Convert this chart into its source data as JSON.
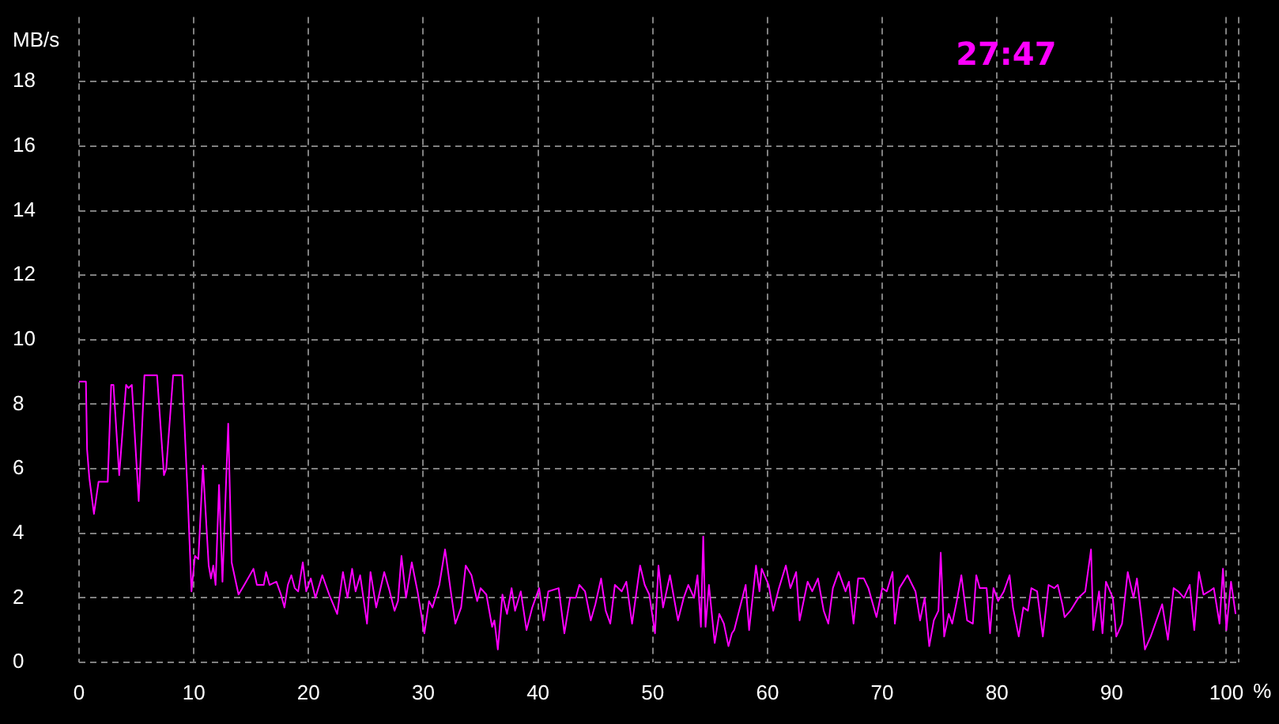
{
  "chart_data": {
    "type": "line",
    "title": "27:47",
    "xlabel": "%",
    "ylabel": "MB/s",
    "xlim": [
      0,
      101
    ],
    "xticks": [
      0,
      10,
      20,
      30,
      40,
      50,
      60,
      70,
      80,
      90,
      100
    ],
    "ylim": [
      0,
      20
    ],
    "yticks": [
      0,
      2,
      4,
      6,
      8,
      10,
      12,
      14,
      16,
      18
    ],
    "grid": true,
    "color": "#ff00ff",
    "x": [
      0,
      0.6,
      0.7,
      0.9,
      1.3,
      1.7,
      2.5,
      2.8,
      3.0,
      3.5,
      4.1,
      4.3,
      4.6,
      5.2,
      5.7,
      6.8,
      7.4,
      7.6,
      8.2,
      9.0,
      9.5,
      9.8,
      10.1,
      10.4,
      10.8,
      11.3,
      11.5,
      11.7,
      11.9,
      12.2,
      12.5,
      13.0,
      13.3,
      13.9,
      14.4,
      15.2,
      15.5,
      16.1,
      16.3,
      16.6,
      17.2,
      17.6,
      17.9,
      18.2,
      18.5,
      18.8,
      19.1,
      19.5,
      19.8,
      20.2,
      20.6,
      21.2,
      21.8,
      22.5,
      23.0,
      23.4,
      23.8,
      24.1,
      24.5,
      25.1,
      25.4,
      25.9,
      26.6,
      27.0,
      27.5,
      27.8,
      28.1,
      28.5,
      29.0,
      29.5,
      30.1,
      30.5,
      30.8,
      31.4,
      31.9,
      32.4,
      32.8,
      33.3,
      33.7,
      34.2,
      34.7,
      35.0,
      35.5,
      36.0,
      36.2,
      36.5,
      36.9,
      37.3,
      37.7,
      38.0,
      38.5,
      39.0,
      39.5,
      40.1,
      40.5,
      40.9,
      41.8,
      42.3,
      42.8,
      43.3,
      43.6,
      44.1,
      44.6,
      45.0,
      45.5,
      45.9,
      46.3,
      46.7,
      47.3,
      47.7,
      48.2,
      48.9,
      49.3,
      49.7,
      50.2,
      50.5,
      50.9,
      51.5,
      52.2,
      52.7,
      53.1,
      53.6,
      53.9,
      54.2,
      54.4,
      54.6,
      54.9,
      55.4,
      55.8,
      56.2,
      56.6,
      56.9,
      57.1,
      57.6,
      58.1,
      58.4,
      59.0,
      59.3,
      59.5,
      60.1,
      60.5,
      61.0,
      61.6,
      62.0,
      62.5,
      62.8,
      63.5,
      63.9,
      64.4,
      64.9,
      65.3,
      65.7,
      66.2,
      66.8,
      67.1,
      67.5,
      67.9,
      68.4,
      68.8,
      69.5,
      70.0,
      70.4,
      70.9,
      71.1,
      71.5,
      72.2,
      72.9,
      73.3,
      73.7,
      74.1,
      74.5,
      74.9,
      75.1,
      75.4,
      75.8,
      76.1,
      76.5,
      76.9,
      77.4,
      77.9,
      78.2,
      78.5,
      79.1,
      79.4,
      79.7,
      80.1,
      80.6,
      81.1,
      81.4,
      81.9,
      82.3,
      82.7,
      83.0,
      83.5,
      84.0,
      84.5,
      85.0,
      85.3,
      85.7,
      85.9,
      86.4,
      87.1,
      87.7,
      88.2,
      88.4,
      88.9,
      89.2,
      89.5,
      90.1,
      90.4,
      90.9,
      91.4,
      91.9,
      92.2,
      92.6,
      92.9,
      93.4,
      94.4,
      94.9,
      95.4,
      95.8,
      96.3,
      96.8,
      97.2,
      97.6,
      98.0,
      98.5,
      98.9,
      99.4,
      99.7,
      100.0,
      100.4,
      100.8
    ],
    "values": [
      8.7,
      8.7,
      6.6,
      5.7,
      4.6,
      5.6,
      5.6,
      8.6,
      8.6,
      5.8,
      8.6,
      8.5,
      8.6,
      5.0,
      8.9,
      8.9,
      5.8,
      6.0,
      8.9,
      8.9,
      4.9,
      2.2,
      3.3,
      3.2,
      6.1,
      3.0,
      2.6,
      3.0,
      2.4,
      5.5,
      2.5,
      7.4,
      3.1,
      2.1,
      2.4,
      2.9,
      2.4,
      2.4,
      2.8,
      2.4,
      2.5,
      2.1,
      1.7,
      2.4,
      2.7,
      2.3,
      2.2,
      3.1,
      2.2,
      2.6,
      2.0,
      2.7,
      2.1,
      1.5,
      2.8,
      2.0,
      2.9,
      2.2,
      2.7,
      1.2,
      2.8,
      1.7,
      2.8,
      2.3,
      1.6,
      1.9,
      3.3,
      2.0,
      3.1,
      2.2,
      0.9,
      1.9,
      1.7,
      2.4,
      3.5,
      2.2,
      1.2,
      1.7,
      3.0,
      2.7,
      1.9,
      2.3,
      2.1,
      1.1,
      1.3,
      0.4,
      2.1,
      1.5,
      2.3,
      1.6,
      2.2,
      1.0,
      1.7,
      2.3,
      1.3,
      2.2,
      2.3,
      0.9,
      2.0,
      2.0,
      2.4,
      2.2,
      1.3,
      1.8,
      2.6,
      1.6,
      1.2,
      2.4,
      2.2,
      2.5,
      1.2,
      3.0,
      2.4,
      2.1,
      0.9,
      3.0,
      1.7,
      2.7,
      1.3,
      2.0,
      2.4,
      2.0,
      2.7,
      1.1,
      3.9,
      1.1,
      2.4,
      0.6,
      1.5,
      1.2,
      0.5,
      0.9,
      1.0,
      1.7,
      2.4,
      1.0,
      3.0,
      2.2,
      2.9,
      2.4,
      1.6,
      2.3,
      3.0,
      2.3,
      2.8,
      1.3,
      2.5,
      2.2,
      2.6,
      1.6,
      1.2,
      2.3,
      2.8,
      2.2,
      2.5,
      1.2,
      2.6,
      2.6,
      2.3,
      1.4,
      2.3,
      2.2,
      2.8,
      1.2,
      2.3,
      2.7,
      2.2,
      1.3,
      2.0,
      0.5,
      1.3,
      1.6,
      3.4,
      0.8,
      1.5,
      1.2,
      1.9,
      2.7,
      1.3,
      1.2,
      2.7,
      2.3,
      2.3,
      0.9,
      2.3,
      1.9,
      2.2,
      2.7,
      1.7,
      0.8,
      1.7,
      1.6,
      2.3,
      2.2,
      0.8,
      2.4,
      2.3,
      2.4,
      1.8,
      1.4,
      1.6,
      2.0,
      2.2,
      3.5,
      1.0,
      2.2,
      0.9,
      2.5,
      2.0,
      0.8,
      1.2,
      2.8,
      2.0,
      2.6,
      1.4,
      0.4,
      0.8,
      1.8,
      0.7,
      2.3,
      2.2,
      2.0,
      2.4,
      1.0,
      2.8,
      2.1,
      2.2,
      2.3,
      1.2,
      2.9,
      1.0,
      2.5,
      1.5
    ]
  }
}
